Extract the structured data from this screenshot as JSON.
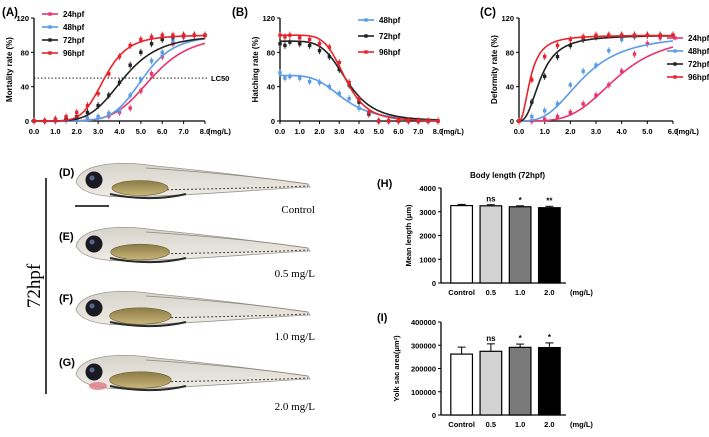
{
  "panels": {
    "a": "(A)",
    "b": "(B)",
    "c": "(C)",
    "d": "(D)",
    "e": "(E)",
    "f": "(F)",
    "g": "(G)",
    "h": "(H)",
    "i": "(I)"
  },
  "group_label": "72hpf",
  "fish_captions": {
    "d": "Control",
    "e": "0.5 mg/L",
    "f": "1.0 mg/L",
    "g": "2.0 mg/L"
  },
  "colors": {
    "24hpf": "#e8336b",
    "48hpf": "#5a9be8",
    "72hpf": "#222222",
    "96hpf": "#e8232b",
    "bar_control": "#ffffff",
    "bar_0.5": "#d2d2d2",
    "bar_1.0": "#7a7a7a",
    "bar_2.0": "#000000"
  },
  "chart_data": [
    {
      "id": "A",
      "type": "line",
      "ylabel": "Mortality rate (%)",
      "xunit": "(mg/L)",
      "xlim": [
        0,
        8
      ],
      "ylim": [
        0,
        120
      ],
      "xticks": [
        "0.0",
        "1.0",
        "2.0",
        "3.0",
        "4.0",
        "5.0",
        "6.0",
        "7.0",
        "8.0"
      ],
      "yticks": [
        "0",
        "40",
        "80",
        "120"
      ],
      "reference_line": {
        "y": 50,
        "label": "LC50"
      },
      "legend": [
        "24hpf",
        "48hpf",
        "72hpf",
        "96hpf"
      ],
      "series": [
        {
          "name": "24hpf",
          "ec50": 5.5,
          "hill": 6,
          "points": [
            [
              0,
              0
            ],
            [
              0.5,
              0
            ],
            [
              1,
              0
            ],
            [
              1.5,
              1
            ],
            [
              2,
              2
            ],
            [
              2.5,
              3
            ],
            [
              3,
              4
            ],
            [
              3.5,
              6
            ],
            [
              4,
              10
            ],
            [
              4.5,
              15
            ],
            [
              5,
              35
            ],
            [
              5.5,
              55
            ],
            [
              6,
              75
            ],
            [
              6.5,
              90
            ],
            [
              7,
              98
            ],
            [
              7.5,
              100
            ],
            [
              8,
              100
            ]
          ]
        },
        {
          "name": "48hpf",
          "ec50": 5.1,
          "hill": 7,
          "points": [
            [
              0,
              0
            ],
            [
              0.5,
              0
            ],
            [
              1,
              0
            ],
            [
              1.5,
              1
            ],
            [
              2,
              2
            ],
            [
              2.5,
              3
            ],
            [
              3,
              5
            ],
            [
              3.5,
              9
            ],
            [
              4,
              12
            ],
            [
              4.5,
              30
            ],
            [
              5,
              48
            ],
            [
              5.5,
              70
            ],
            [
              6,
              80
            ],
            [
              6.5,
              94
            ],
            [
              7,
              100
            ],
            [
              7.5,
              100
            ],
            [
              8,
              100
            ]
          ]
        },
        {
          "name": "72hpf",
          "ec50": 4.2,
          "hill": 5,
          "points": [
            [
              0,
              0
            ],
            [
              0.5,
              0
            ],
            [
              1,
              2
            ],
            [
              1.5,
              3
            ],
            [
              2,
              5
            ],
            [
              2.5,
              10
            ],
            [
              3,
              18
            ],
            [
              3.5,
              30
            ],
            [
              4,
              45
            ],
            [
              4.5,
              65
            ],
            [
              5,
              80
            ],
            [
              5.5,
              90
            ],
            [
              6,
              95
            ],
            [
              6.5,
              98
            ],
            [
              7,
              100
            ],
            [
              7.5,
              100
            ],
            [
              8,
              100
            ]
          ]
        },
        {
          "name": "96hpf",
          "ec50": 3.3,
          "hill": 6,
          "points": [
            [
              0,
              0
            ],
            [
              0.5,
              0
            ],
            [
              1,
              2
            ],
            [
              1.5,
              5
            ],
            [
              2,
              10
            ],
            [
              2.5,
              18
            ],
            [
              3,
              32
            ],
            [
              3.5,
              55
            ],
            [
              4,
              75
            ],
            [
              4.5,
              88
            ],
            [
              5,
              95
            ],
            [
              5.5,
              98
            ],
            [
              6,
              100
            ],
            [
              6.5,
              100
            ],
            [
              7,
              100
            ],
            [
              7.5,
              100
            ],
            [
              8,
              100
            ]
          ]
        }
      ]
    },
    {
      "id": "B",
      "type": "line",
      "ylabel": "Hatching rate (%)",
      "xunit": "(mg/L)",
      "xlim": [
        0,
        8
      ],
      "ylim": [
        0,
        120
      ],
      "xticks": [
        "0.0",
        "1.0",
        "2.0",
        "3.0",
        "4.0",
        "5.0",
        "6.0",
        "7.0",
        "8.0"
      ],
      "yticks": [
        "0",
        "40",
        "80",
        "120"
      ],
      "legend": [
        "48hpf",
        "72hpf",
        "96hpf"
      ],
      "series": [
        {
          "name": "48hpf",
          "top": 53,
          "ec50": 3.2,
          "hill": 4,
          "points": [
            [
              0,
              56
            ],
            [
              0.25,
              50
            ],
            [
              0.5,
              52
            ],
            [
              1,
              50
            ],
            [
              1.5,
              46
            ],
            [
              2,
              45
            ],
            [
              2.5,
              40
            ],
            [
              3,
              32
            ],
            [
              3.5,
              26
            ],
            [
              4,
              15
            ],
            [
              4.5,
              10
            ],
            [
              5,
              0
            ],
            [
              5.5,
              0
            ],
            [
              6,
              0
            ],
            [
              6.5,
              0
            ],
            [
              7,
              0
            ],
            [
              7.5,
              0
            ],
            [
              8,
              0
            ]
          ]
        },
        {
          "name": "72hpf",
          "top": 93,
          "ec50": 3.4,
          "hill": 5,
          "points": [
            [
              0,
              90
            ],
            [
              0.25,
              88
            ],
            [
              0.5,
              92
            ],
            [
              1,
              90
            ],
            [
              1.5,
              88
            ],
            [
              2,
              82
            ],
            [
              2.5,
              75
            ],
            [
              3,
              60
            ],
            [
              3.5,
              42
            ],
            [
              4,
              22
            ],
            [
              4.5,
              8
            ],
            [
              5,
              0
            ],
            [
              5.5,
              0
            ],
            [
              6,
              0
            ],
            [
              6.5,
              0
            ],
            [
              7,
              0
            ],
            [
              7.5,
              0
            ],
            [
              8,
              0
            ]
          ]
        },
        {
          "name": "96hpf",
          "top": 100,
          "ec50": 3.3,
          "hill": 6,
          "points": [
            [
              0,
              100
            ],
            [
              0.25,
              98
            ],
            [
              0.5,
              100
            ],
            [
              1,
              97
            ],
            [
              1.5,
              95
            ],
            [
              2,
              90
            ],
            [
              2.5,
              86
            ],
            [
              3,
              68
            ],
            [
              3.5,
              45
            ],
            [
              4,
              26
            ],
            [
              4.5,
              10
            ],
            [
              5,
              0
            ],
            [
              5.5,
              0
            ],
            [
              6,
              0
            ],
            [
              6.5,
              0
            ],
            [
              7,
              0
            ],
            [
              7.5,
              0
            ],
            [
              8,
              0
            ]
          ]
        }
      ]
    },
    {
      "id": "C",
      "type": "line",
      "ylabel": "Deformity rate (%)",
      "xunit": "(mg/L)",
      "xlim": [
        0,
        6
      ],
      "ylim": [
        0,
        120
      ],
      "xticks": [
        "0.0",
        "1.0",
        "2.0",
        "3.0",
        "4.0",
        "5.0",
        "6.0"
      ],
      "yticks": [
        "0",
        "40",
        "80",
        "120"
      ],
      "legend": [
        "24hpf",
        "48hpf",
        "72hpf",
        "96hpf"
      ],
      "series": [
        {
          "name": "24hpf",
          "ec50": 3.8,
          "hill": 4,
          "points": [
            [
              0,
              0
            ],
            [
              0.5,
              0
            ],
            [
              1,
              2
            ],
            [
              1.5,
              5
            ],
            [
              2,
              10
            ],
            [
              2.5,
              20
            ],
            [
              3,
              30
            ],
            [
              3.5,
              42
            ],
            [
              4,
              58
            ],
            [
              4.5,
              78
            ],
            [
              5,
              90
            ],
            [
              5.5,
              97
            ],
            [
              6,
              100
            ]
          ]
        },
        {
          "name": "48hpf",
          "ec50": 2.5,
          "hill": 3,
          "points": [
            [
              0,
              0
            ],
            [
              0.5,
              5
            ],
            [
              1,
              12
            ],
            [
              1.5,
              20
            ],
            [
              2,
              42
            ],
            [
              2.5,
              58
            ],
            [
              3,
              65
            ],
            [
              3.5,
              82
            ],
            [
              4,
              95
            ],
            [
              4.5,
              98
            ],
            [
              5,
              100
            ],
            [
              5.5,
              100
            ],
            [
              6,
              100
            ]
          ]
        },
        {
          "name": "72hpf",
          "ec50": 0.85,
          "hill": 2.5,
          "points": [
            [
              0,
              0
            ],
            [
              0.5,
              22
            ],
            [
              1,
              52
            ],
            [
              1.5,
              75
            ],
            [
              2,
              88
            ],
            [
              2.5,
              95
            ],
            [
              3,
              98
            ],
            [
              3.5,
              100
            ],
            [
              4,
              100
            ],
            [
              4.5,
              100
            ],
            [
              5,
              100
            ],
            [
              5.5,
              100
            ],
            [
              6,
              100
            ]
          ]
        },
        {
          "name": "96hpf",
          "ec50": 0.45,
          "hill": 2.2,
          "points": [
            [
              0,
              0
            ],
            [
              0.5,
              48
            ],
            [
              1,
              75
            ],
            [
              1.5,
              88
            ],
            [
              2,
              95
            ],
            [
              2.5,
              98
            ],
            [
              3,
              100
            ],
            [
              3.5,
              100
            ],
            [
              4,
              100
            ],
            [
              4.5,
              100
            ],
            [
              5,
              100
            ],
            [
              5.5,
              100
            ],
            [
              6,
              100
            ]
          ]
        }
      ]
    },
    {
      "id": "H",
      "type": "bar",
      "title": "Body length (72hpf)",
      "ylabel": "Mean length  (μm)",
      "xunit": "(mg/L)",
      "categories": [
        "Control",
        "0.5",
        "1.0",
        "2.0"
      ],
      "values": [
        3260,
        3250,
        3210,
        3170
      ],
      "errors": [
        50,
        45,
        40,
        60
      ],
      "significance": [
        "",
        "ns",
        "*",
        "**"
      ],
      "ylim": [
        0,
        4000
      ],
      "yticks": [
        "0",
        "1000",
        "2000",
        "3000",
        "4000"
      ]
    },
    {
      "id": "I",
      "type": "bar",
      "ylabel": "Yolk sac  area(μm²)",
      "xunit": "(mg/L)",
      "categories": [
        "Control",
        "0.5",
        "1.0",
        "2.0"
      ],
      "values": [
        262000,
        274000,
        291000,
        290000
      ],
      "errors": [
        30000,
        32000,
        14000,
        20000
      ],
      "significance": [
        "",
        "ns",
        "*",
        "*"
      ],
      "ylim": [
        0,
        400000
      ],
      "yticks": [
        "0",
        "100000",
        "200000",
        "300000",
        "400000"
      ]
    }
  ]
}
